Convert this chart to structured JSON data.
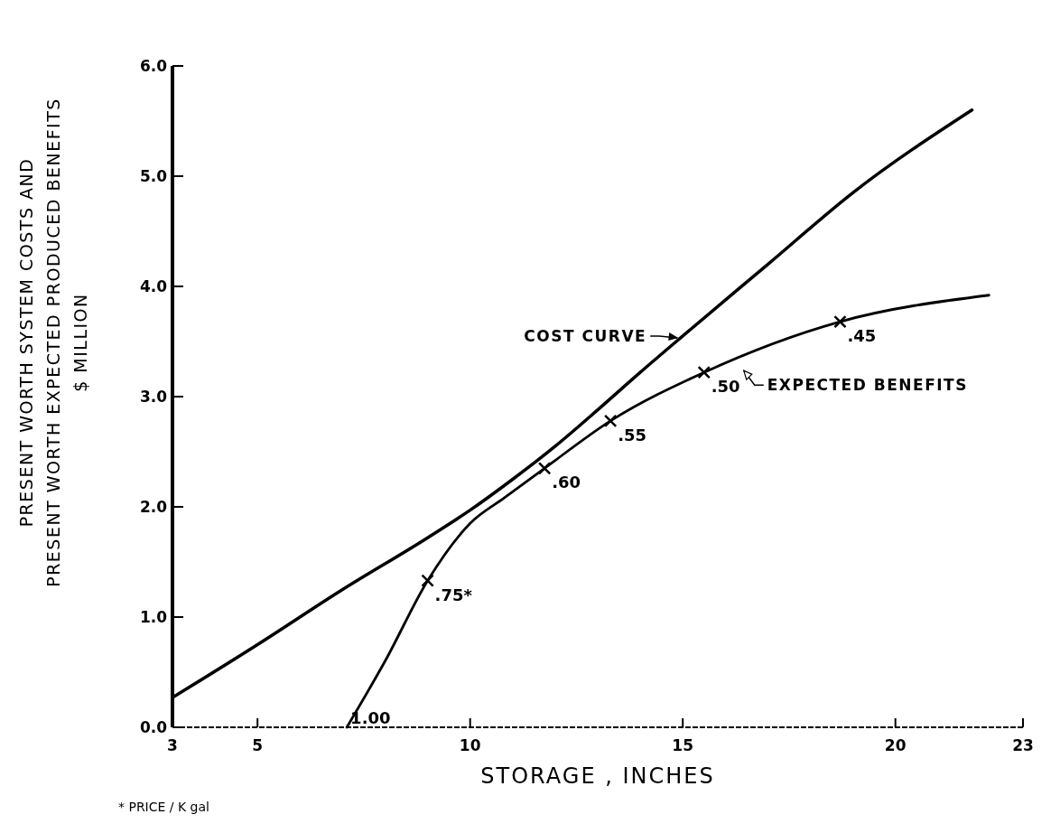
{
  "chart_data": {
    "type": "line",
    "xlabel": "STORAGE , INCHES",
    "ylabel": "PRESENT WORTH SYSTEM COSTS AND\nPRESENT WORTH EXPECTED PRODUCED BENEFITS\n$ MILLION",
    "xlim": [
      3,
      23
    ],
    "xticks": [
      3,
      5,
      10,
      15,
      20,
      23
    ],
    "ylim": [
      0,
      6
    ],
    "yticks": [
      {
        "value": 0,
        "label": "0.0"
      },
      {
        "value": 1,
        "label": "1.0"
      },
      {
        "value": 2,
        "label": "2.0"
      },
      {
        "value": 3,
        "label": "3.0"
      },
      {
        "value": 4,
        "label": "4.0"
      },
      {
        "value": 5,
        "label": "5.0"
      },
      {
        "value": 6,
        "label": "6.0"
      }
    ],
    "grid": false,
    "series": [
      {
        "name": "COST CURVE",
        "color": "#000000",
        "x": [
          3,
          5,
          7,
          9,
          10,
          11,
          12,
          13,
          14,
          15,
          17,
          19,
          21.8
        ],
        "values": [
          0.27,
          0.75,
          1.25,
          1.72,
          1.97,
          2.25,
          2.55,
          2.88,
          3.22,
          3.55,
          4.2,
          4.85,
          5.6
        ]
      },
      {
        "name": "EXPECTED BENEFITS",
        "color": "#000000",
        "x": [
          7.1,
          8,
          9,
          10,
          10.8,
          11.75,
          13.3,
          15.5,
          18.7,
          22.2
        ],
        "values": [
          0,
          0.6,
          1.33,
          1.85,
          2.08,
          2.35,
          2.78,
          3.22,
          3.68,
          3.92
        ]
      },
      {
        "type": "scatter",
        "marker": "cross",
        "color": "#000000",
        "x": [
          9,
          11.75,
          13.3,
          15.5,
          18.7
        ],
        "values": [
          1.33,
          2.35,
          2.78,
          3.22,
          3.68
        ]
      }
    ],
    "annotations": [
      {
        "text": "1.00",
        "x": 7.1,
        "y": 0
      },
      {
        "text": ".75*",
        "x": 9,
        "y": 1.33
      },
      {
        "text": ".60",
        "x": 11.75,
        "y": 2.35
      },
      {
        "text": ".55",
        "x": 13.3,
        "y": 2.78
      },
      {
        "text": ".50",
        "x": 15.5,
        "y": 3.22
      },
      {
        "text": ".45",
        "x": 18.7,
        "y": 3.68
      },
      "* PRICE / K gal"
    ]
  }
}
